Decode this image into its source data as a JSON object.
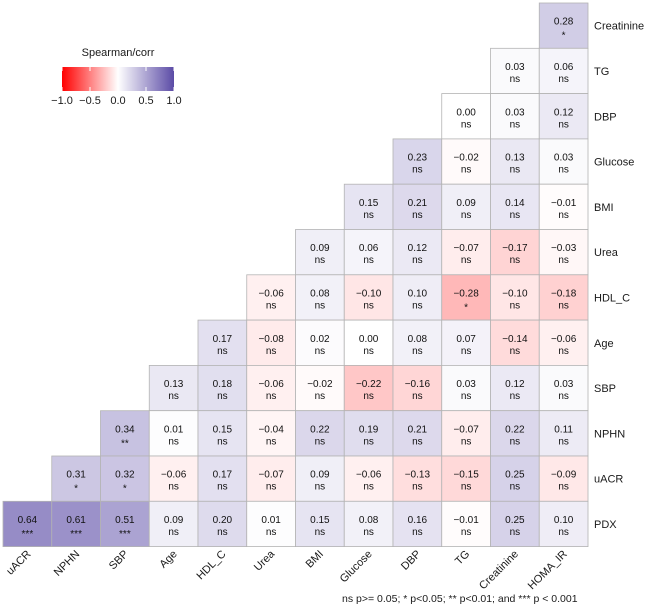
{
  "chart_data": {
    "type": "heatmap",
    "subtype": "lower-triangular correlation matrix",
    "method_label": "Spearman/corr",
    "legend": {
      "title": "Spearman/corr",
      "range": [
        -1.0,
        1.0
      ],
      "tick_values": [
        -1.0,
        -0.5,
        0.0,
        0.5,
        1.0
      ],
      "tick_labels": [
        "−1.0",
        "−0.5",
        "0.0",
        "0.5",
        "1.0"
      ],
      "negative_color": "#ff0000",
      "zero_color": "#ffffff",
      "positive_color": "#5b4ba6",
      "placement": "top-left"
    },
    "columns": [
      "uACR",
      "NPHN",
      "SBP",
      "Age",
      "HDL_C",
      "Urea",
      "BMI",
      "Glucose",
      "DBP",
      "TG",
      "Creatinine",
      "HOMA_IR"
    ],
    "rows": [
      {
        "label": "Creatinine",
        "cells": [
          {
            "col": "HOMA_IR",
            "value": 0.28,
            "display": "0.28",
            "sig": "*"
          }
        ]
      },
      {
        "label": "TG",
        "cells": [
          {
            "col": "Creatinine",
            "value": 0.03,
            "display": "0.03",
            "sig": "ns"
          },
          {
            "col": "HOMA_IR",
            "value": 0.06,
            "display": "0.06",
            "sig": "ns"
          }
        ]
      },
      {
        "label": "DBP",
        "cells": [
          {
            "col": "TG",
            "value": 0.0,
            "display": "0.00",
            "sig": "ns"
          },
          {
            "col": "Creatinine",
            "value": 0.03,
            "display": "0.03",
            "sig": "ns"
          },
          {
            "col": "HOMA_IR",
            "value": 0.12,
            "display": "0.12",
            "sig": "ns"
          }
        ]
      },
      {
        "label": "Glucose",
        "cells": [
          {
            "col": "DBP",
            "value": 0.23,
            "display": "0.23",
            "sig": "ns"
          },
          {
            "col": "TG",
            "value": -0.02,
            "display": "−0.02",
            "sig": "ns"
          },
          {
            "col": "Creatinine",
            "value": 0.13,
            "display": "0.13",
            "sig": "ns"
          },
          {
            "col": "HOMA_IR",
            "value": 0.03,
            "display": "0.03",
            "sig": "ns"
          }
        ]
      },
      {
        "label": "BMI",
        "cells": [
          {
            "col": "Glucose",
            "value": 0.15,
            "display": "0.15",
            "sig": "ns"
          },
          {
            "col": "DBP",
            "value": 0.21,
            "display": "0.21",
            "sig": "ns"
          },
          {
            "col": "TG",
            "value": 0.09,
            "display": "0.09",
            "sig": "ns"
          },
          {
            "col": "Creatinine",
            "value": 0.14,
            "display": "0.14",
            "sig": "ns"
          },
          {
            "col": "HOMA_IR",
            "value": -0.01,
            "display": "−0.01",
            "sig": "ns"
          }
        ]
      },
      {
        "label": "Urea",
        "cells": [
          {
            "col": "BMI",
            "value": 0.09,
            "display": "0.09",
            "sig": "ns"
          },
          {
            "col": "Glucose",
            "value": 0.06,
            "display": "0.06",
            "sig": "ns"
          },
          {
            "col": "DBP",
            "value": 0.12,
            "display": "0.12",
            "sig": "ns"
          },
          {
            "col": "TG",
            "value": -0.07,
            "display": "−0.07",
            "sig": "ns"
          },
          {
            "col": "Creatinine",
            "value": -0.17,
            "display": "−0.17",
            "sig": "ns"
          },
          {
            "col": "HOMA_IR",
            "value": -0.03,
            "display": "−0.03",
            "sig": "ns"
          }
        ]
      },
      {
        "label": "HDL_C",
        "cells": [
          {
            "col": "Urea",
            "value": -0.06,
            "display": "−0.06",
            "sig": "ns"
          },
          {
            "col": "BMI",
            "value": 0.08,
            "display": "0.08",
            "sig": "ns"
          },
          {
            "col": "Glucose",
            "value": -0.1,
            "display": "−0.10",
            "sig": "ns"
          },
          {
            "col": "DBP",
            "value": 0.1,
            "display": "0.10",
            "sig": "ns"
          },
          {
            "col": "TG",
            "value": -0.28,
            "display": "−0.28",
            "sig": "*"
          },
          {
            "col": "Creatinine",
            "value": -0.1,
            "display": "−0.10",
            "sig": "ns"
          },
          {
            "col": "HOMA_IR",
            "value": -0.18,
            "display": "−0.18",
            "sig": "ns"
          }
        ]
      },
      {
        "label": "Age",
        "cells": [
          {
            "col": "HDL_C",
            "value": 0.17,
            "display": "0.17",
            "sig": "ns"
          },
          {
            "col": "Urea",
            "value": -0.08,
            "display": "−0.08",
            "sig": "ns"
          },
          {
            "col": "BMI",
            "value": 0.02,
            "display": "0.02",
            "sig": "ns"
          },
          {
            "col": "Glucose",
            "value": 0.0,
            "display": "0.00",
            "sig": "ns"
          },
          {
            "col": "DBP",
            "value": 0.08,
            "display": "0.08",
            "sig": "ns"
          },
          {
            "col": "TG",
            "value": 0.07,
            "display": "0.07",
            "sig": "ns"
          },
          {
            "col": "Creatinine",
            "value": -0.14,
            "display": "−0.14",
            "sig": "ns"
          },
          {
            "col": "HOMA_IR",
            "value": -0.06,
            "display": "−0.06",
            "sig": "ns"
          }
        ]
      },
      {
        "label": "SBP",
        "cells": [
          {
            "col": "Age",
            "value": 0.13,
            "display": "0.13",
            "sig": "ns"
          },
          {
            "col": "HDL_C",
            "value": 0.18,
            "display": "0.18",
            "sig": "ns"
          },
          {
            "col": "Urea",
            "value": -0.06,
            "display": "−0.06",
            "sig": "ns"
          },
          {
            "col": "BMI",
            "value": -0.02,
            "display": "−0.02",
            "sig": "ns"
          },
          {
            "col": "Glucose",
            "value": -0.22,
            "display": "−0.22",
            "sig": "ns"
          },
          {
            "col": "DBP",
            "value": -0.16,
            "display": "−0.16",
            "sig": "ns"
          },
          {
            "col": "TG",
            "value": 0.03,
            "display": "0.03",
            "sig": "ns"
          },
          {
            "col": "Creatinine",
            "value": 0.12,
            "display": "0.12",
            "sig": "ns"
          },
          {
            "col": "HOMA_IR",
            "value": 0.03,
            "display": "0.03",
            "sig": "ns"
          }
        ]
      },
      {
        "label": "NPHN",
        "cells": [
          {
            "col": "SBP",
            "value": 0.34,
            "display": "0.34",
            "sig": "**"
          },
          {
            "col": "Age",
            "value": 0.01,
            "display": "0.01",
            "sig": "ns"
          },
          {
            "col": "HDL_C",
            "value": 0.15,
            "display": "0.15",
            "sig": "ns"
          },
          {
            "col": "Urea",
            "value": -0.04,
            "display": "−0.04",
            "sig": "ns"
          },
          {
            "col": "BMI",
            "value": 0.22,
            "display": "0.22",
            "sig": "ns"
          },
          {
            "col": "Glucose",
            "value": 0.19,
            "display": "0.19",
            "sig": "ns"
          },
          {
            "col": "DBP",
            "value": 0.21,
            "display": "0.21",
            "sig": "ns"
          },
          {
            "col": "TG",
            "value": -0.07,
            "display": "−0.07",
            "sig": "ns"
          },
          {
            "col": "Creatinine",
            "value": 0.22,
            "display": "0.22",
            "sig": "ns"
          },
          {
            "col": "HOMA_IR",
            "value": 0.11,
            "display": "0.11",
            "sig": "ns"
          }
        ]
      },
      {
        "label": "uACR",
        "cells": [
          {
            "col": "NPHN",
            "value": 0.31,
            "display": "0.31",
            "sig": "*"
          },
          {
            "col": "SBP",
            "value": 0.32,
            "display": "0.32",
            "sig": "*"
          },
          {
            "col": "Age",
            "value": -0.06,
            "display": "−0.06",
            "sig": "ns"
          },
          {
            "col": "HDL_C",
            "value": 0.17,
            "display": "0.17",
            "sig": "ns"
          },
          {
            "col": "Urea",
            "value": -0.07,
            "display": "−0.07",
            "sig": "ns"
          },
          {
            "col": "BMI",
            "value": 0.09,
            "display": "0.09",
            "sig": "ns"
          },
          {
            "col": "Glucose",
            "value": -0.06,
            "display": "−0.06",
            "sig": "ns"
          },
          {
            "col": "DBP",
            "value": -0.13,
            "display": "−0.13",
            "sig": "ns"
          },
          {
            "col": "TG",
            "value": -0.15,
            "display": "−0.15",
            "sig": "ns"
          },
          {
            "col": "Creatinine",
            "value": 0.25,
            "display": "0.25",
            "sig": "ns"
          },
          {
            "col": "HOMA_IR",
            "value": -0.09,
            "display": "−0.09",
            "sig": "ns"
          }
        ]
      },
      {
        "label": "PDX",
        "cells": [
          {
            "col": "uACR",
            "value": 0.64,
            "display": "0.64",
            "sig": "***"
          },
          {
            "col": "NPHN",
            "value": 0.61,
            "display": "0.61",
            "sig": "***"
          },
          {
            "col": "SBP",
            "value": 0.51,
            "display": "0.51",
            "sig": "***"
          },
          {
            "col": "Age",
            "value": 0.09,
            "display": "0.09",
            "sig": "ns"
          },
          {
            "col": "HDL_C",
            "value": 0.2,
            "display": "0.20",
            "sig": "ns"
          },
          {
            "col": "Urea",
            "value": 0.01,
            "display": "0.01",
            "sig": "ns"
          },
          {
            "col": "BMI",
            "value": 0.15,
            "display": "0.15",
            "sig": "ns"
          },
          {
            "col": "Glucose",
            "value": 0.08,
            "display": "0.08",
            "sig": "ns"
          },
          {
            "col": "DBP",
            "value": 0.16,
            "display": "0.16",
            "sig": "ns"
          },
          {
            "col": "TG",
            "value": -0.01,
            "display": "−0.01",
            "sig": "ns"
          },
          {
            "col": "Creatinine",
            "value": 0.25,
            "display": "0.25",
            "sig": "ns"
          },
          {
            "col": "HOMA_IR",
            "value": 0.1,
            "display": "0.10",
            "sig": "ns"
          }
        ]
      }
    ],
    "footnote": "ns p>= 0.05; * p<0.05; ** p<0.01; and *** p < 0.001"
  }
}
